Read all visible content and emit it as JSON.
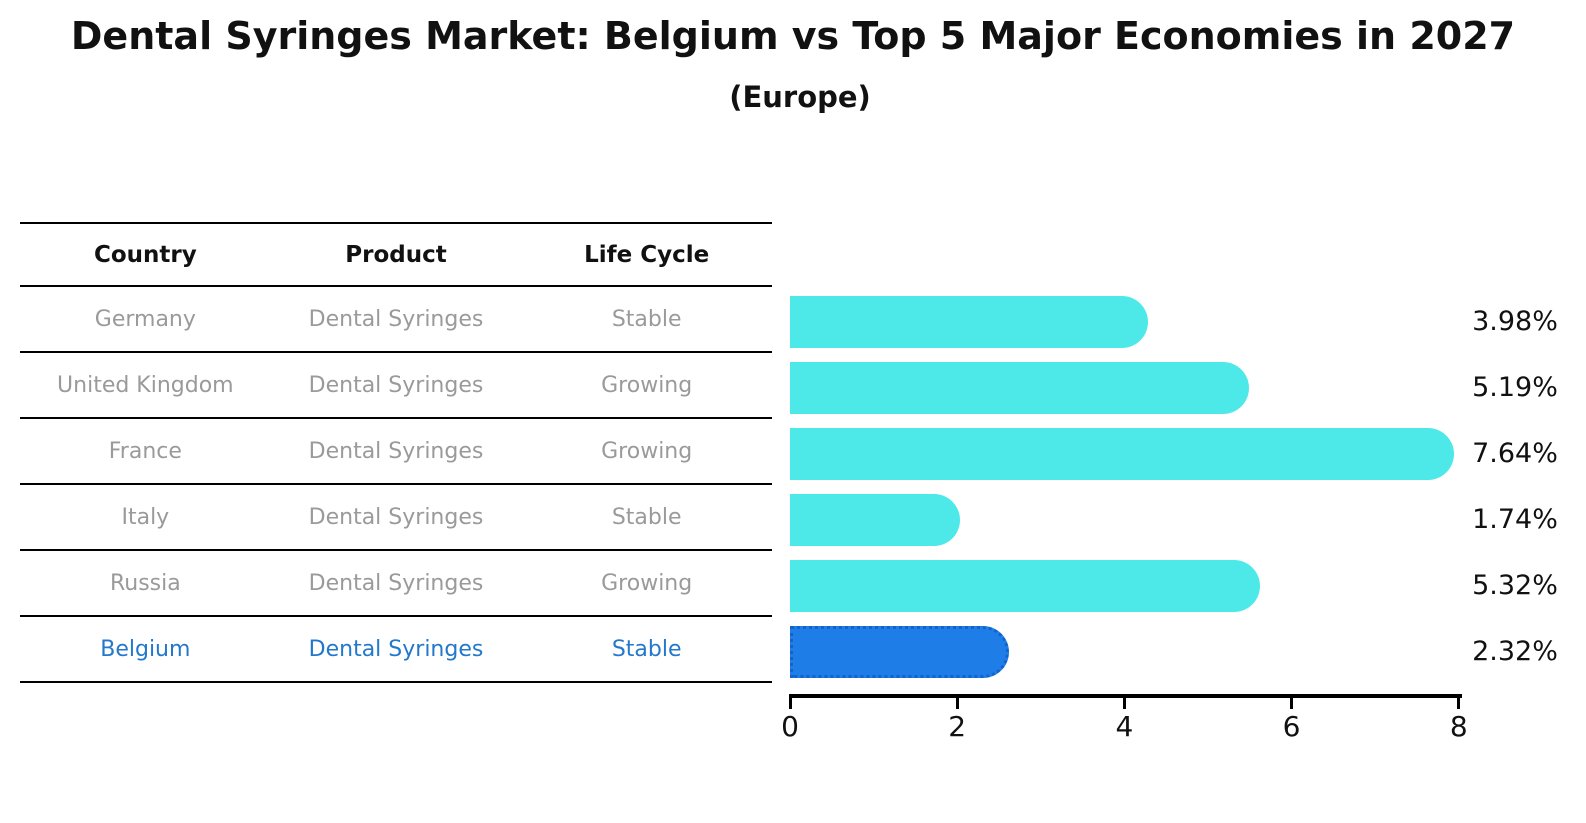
{
  "chart_data": {
    "type": "bar",
    "orientation": "horizontal",
    "title": "Dental Syringes Market: Belgium vs Top 5 Major Economies in 2027",
    "subtitle": "(Europe)",
    "categories": [
      "Germany",
      "United Kingdom",
      "France",
      "Italy",
      "Russia",
      "Belgium"
    ],
    "values": [
      3.98,
      5.19,
      7.64,
      1.74,
      5.32,
      2.32
    ],
    "value_labels": [
      "3.98%",
      "5.19%",
      "7.64%",
      "1.74%",
      "5.32%",
      "2.32%"
    ],
    "xlim": [
      0,
      8
    ],
    "xticks": [
      "0",
      "2",
      "4",
      "6",
      "8"
    ],
    "grid": false,
    "legend": null,
    "bar_color": "#4de9e9",
    "highlight_index": 5,
    "highlight_color": "#1f7de8",
    "highlight_border_color": "#1263cc"
  },
  "table": {
    "headers": [
      "Country",
      "Product",
      "Life Cycle"
    ],
    "rows": [
      {
        "country": "Germany",
        "product": "Dental Syringes",
        "life_cycle": "Stable",
        "highlight": false
      },
      {
        "country": "United Kingdom",
        "product": "Dental Syringes",
        "life_cycle": "Growing",
        "highlight": false
      },
      {
        "country": "France",
        "product": "Dental Syringes",
        "life_cycle": "Growing",
        "highlight": false
      },
      {
        "country": "Italy",
        "product": "Dental Syringes",
        "life_cycle": "Stable",
        "highlight": false
      },
      {
        "country": "Russia",
        "product": "Dental Syringes",
        "life_cycle": "Growing",
        "highlight": false
      },
      {
        "country": "Belgium",
        "product": "Dental Syringes",
        "life_cycle": "Stable",
        "highlight": true
      }
    ],
    "row_text_color": "#9a9a9a",
    "highlight_text_color": "#2478cc"
  }
}
